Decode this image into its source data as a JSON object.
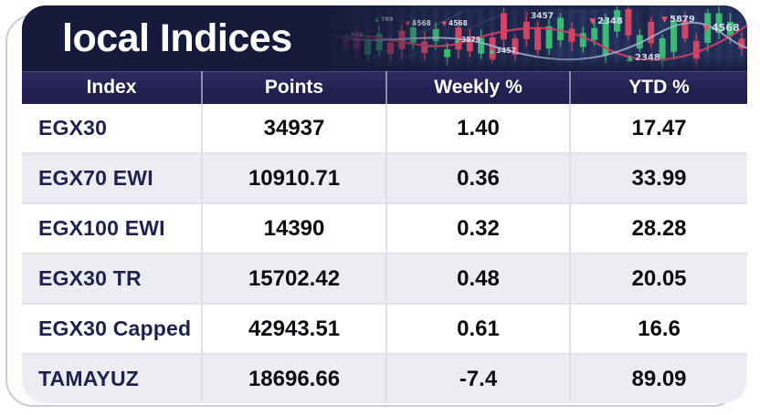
{
  "header": {
    "title": "local Indices"
  },
  "chart_data": {
    "type": "table",
    "title": "local Indices",
    "columns": [
      "Index",
      "Points",
      "Weekly %",
      "YTD %"
    ],
    "rows": [
      [
        "EGX30",
        "34937",
        "1.40",
        "17.47"
      ],
      [
        "EGX70 EWI",
        "10910.71",
        "0.36",
        "33.99"
      ],
      [
        "EGX100 EWI",
        "14390",
        "0.32",
        "28.28"
      ],
      [
        "EGX30 TR",
        "15702.42",
        "0.48",
        "20.05"
      ],
      [
        "EGX30 Capped",
        "42943.51",
        "0.61",
        "16.6"
      ],
      [
        "TAMAYUZ",
        "18696.66",
        "-7.4",
        "89.09"
      ]
    ]
  },
  "decor": {
    "labels": [
      {
        "text": "975",
        "arrow": "▲"
      },
      {
        "text": "789",
        "arrow": "▲"
      },
      {
        "text": "4568",
        "arrow": "▼"
      },
      {
        "text": "4568",
        "arrow": "▼"
      },
      {
        "text": "3879",
        "arrow": "▲"
      },
      {
        "text": "3457",
        "arrow": "▲"
      },
      {
        "text": "3457",
        "arrow": ""
      },
      {
        "text": "2348",
        "arrow": "▼"
      },
      {
        "text": "2348",
        "arrow": "▲"
      },
      {
        "text": "5879",
        "arrow": "▼"
      },
      {
        "text": "4568",
        "arrow": "▼"
      }
    ]
  },
  "colors": {
    "header_bg": "#171a3a",
    "thead_bg": "#232151",
    "row_alt": "#ececf2",
    "candle_green": "#3bbf77",
    "candle_red": "#d84666",
    "curve_red": "#cf3f63",
    "curve_light": "#a9b6d4",
    "index_text": "#1f2150",
    "number_text": "#0c0c10"
  }
}
